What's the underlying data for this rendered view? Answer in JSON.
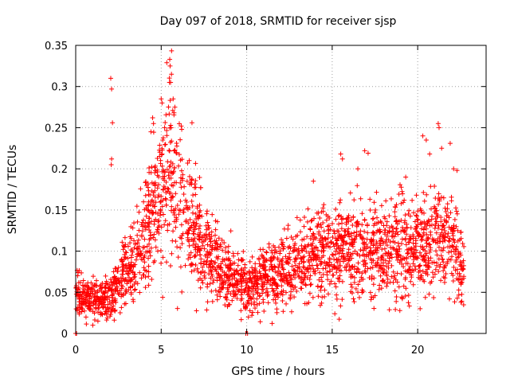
{
  "chart_data": {
    "type": "scatter",
    "title": "Day 097 of 2018, SRMTID for receiver sjsp",
    "xlabel": "GPS time / hours",
    "ylabel": "SRMTID / TECUs",
    "xlim": [
      0,
      24
    ],
    "ylim": [
      0,
      0.35
    ],
    "x_ticks": [
      0,
      5,
      10,
      15,
      20
    ],
    "x_tick_labels": [
      "0",
      "5",
      "10",
      "15",
      "20"
    ],
    "y_ticks": [
      0,
      0.05,
      0.1,
      0.15,
      0.2,
      0.25,
      0.3,
      0.35
    ],
    "y_tick_labels": [
      "0",
      "0.05",
      "0.1",
      "0.15",
      "0.2",
      "0.25",
      "0.3",
      "0.35"
    ],
    "grid": true,
    "marker": "+",
    "colors": {
      "points": "#ff0000",
      "grid": "#a0a0a0",
      "axes": "#000000"
    },
    "series": [
      {
        "name": "SRMTID",
        "trend": [
          [
            0.0,
            0.05
          ],
          [
            0.5,
            0.045
          ],
          [
            1.0,
            0.045
          ],
          [
            1.5,
            0.04
          ],
          [
            2.0,
            0.045
          ],
          [
            2.5,
            0.07
          ],
          [
            3.0,
            0.08
          ],
          [
            3.5,
            0.09
          ],
          [
            4.0,
            0.11
          ],
          [
            4.5,
            0.15
          ],
          [
            5.0,
            0.17
          ],
          [
            5.5,
            0.19
          ],
          [
            6.0,
            0.17
          ],
          [
            6.5,
            0.15
          ],
          [
            7.0,
            0.12
          ],
          [
            7.5,
            0.1
          ],
          [
            8.0,
            0.09
          ],
          [
            8.5,
            0.08
          ],
          [
            9.0,
            0.07
          ],
          [
            9.5,
            0.065
          ],
          [
            10.0,
            0.06
          ],
          [
            10.5,
            0.06
          ],
          [
            11.0,
            0.065
          ],
          [
            11.5,
            0.07
          ],
          [
            12.0,
            0.075
          ],
          [
            12.5,
            0.08
          ],
          [
            13.0,
            0.085
          ],
          [
            13.5,
            0.09
          ],
          [
            14.0,
            0.095
          ],
          [
            14.5,
            0.1
          ],
          [
            15.0,
            0.095
          ],
          [
            15.5,
            0.1
          ],
          [
            16.0,
            0.1
          ],
          [
            16.5,
            0.105
          ],
          [
            17.0,
            0.1
          ],
          [
            17.5,
            0.1
          ],
          [
            18.0,
            0.1
          ],
          [
            18.5,
            0.105
          ],
          [
            19.0,
            0.11
          ],
          [
            19.5,
            0.1
          ],
          [
            20.0,
            0.1
          ],
          [
            20.5,
            0.11
          ],
          [
            21.0,
            0.115
          ],
          [
            21.5,
            0.11
          ],
          [
            22.0,
            0.12
          ],
          [
            22.5,
            0.085
          ],
          [
            22.7,
            0.07
          ]
        ],
        "outliers": [
          [
            2.05,
            0.31
          ],
          [
            2.1,
            0.297
          ],
          [
            2.15,
            0.256
          ],
          [
            2.1,
            0.212
          ],
          [
            2.08,
            0.205
          ],
          [
            4.5,
            0.262
          ],
          [
            4.55,
            0.255
          ],
          [
            5.0,
            0.285
          ],
          [
            5.05,
            0.28
          ],
          [
            5.5,
            0.333
          ],
          [
            5.52,
            0.325
          ],
          [
            5.6,
            0.315
          ],
          [
            5.55,
            0.305
          ],
          [
            5.7,
            0.285
          ],
          [
            5.8,
            0.275
          ],
          [
            5.75,
            0.268
          ],
          [
            6.2,
            0.248
          ],
          [
            6.8,
            0.256
          ],
          [
            4.4,
            0.245
          ],
          [
            5.2,
            0.25
          ],
          [
            13.9,
            0.185
          ],
          [
            15.5,
            0.218
          ],
          [
            15.6,
            0.212
          ],
          [
            16.5,
            0.2
          ],
          [
            16.9,
            0.222
          ],
          [
            17.1,
            0.219
          ],
          [
            19.3,
            0.19
          ],
          [
            20.3,
            0.24
          ],
          [
            20.5,
            0.235
          ],
          [
            20.7,
            0.218
          ],
          [
            21.2,
            0.255
          ],
          [
            21.25,
            0.25
          ],
          [
            21.4,
            0.225
          ],
          [
            21.9,
            0.231
          ],
          [
            22.1,
            0.2
          ],
          [
            22.3,
            0.198
          ],
          [
            0.0,
            0.0
          ],
          [
            0.05,
            0.0
          ],
          [
            9.95,
            0.0
          ],
          [
            10.05,
            0.0
          ],
          [
            1.0,
            0.01
          ],
          [
            1.3,
            0.015
          ],
          [
            10.1,
            0.02
          ],
          [
            10.3,
            0.022
          ],
          [
            16.5,
            0.05
          ]
        ]
      }
    ]
  }
}
